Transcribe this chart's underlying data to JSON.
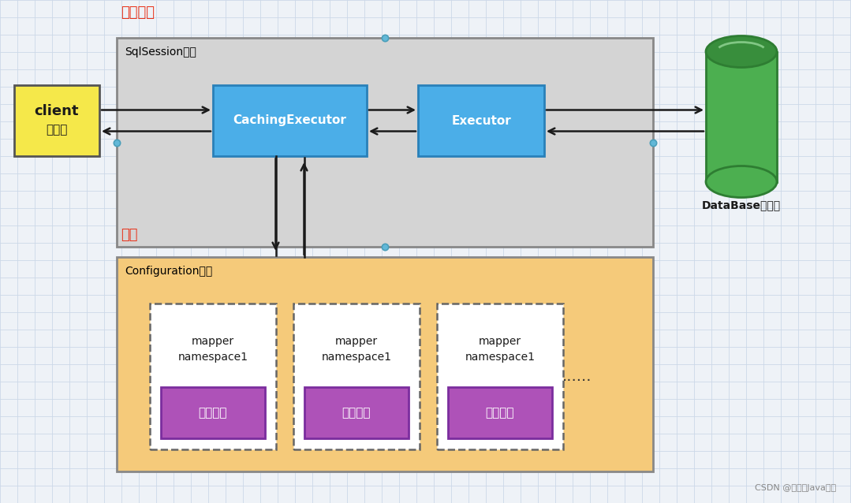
{
  "bg_color": "#eef2f7",
  "grid_color": "#ccd8e8",
  "title_once": "一次会话",
  "title_quanju": "全局",
  "title_color": "#e8341c",
  "sqlsession_label": "SqlSession对象",
  "config_label": "Configuration对象",
  "caching_label": "CachingExecutor",
  "executor_label": "Executor",
  "database_label": "DataBase数据库",
  "mapper_label_1": "mapper",
  "mapper_label_2": "namespace1",
  "cache_label": "二级缓存",
  "client_line1": "client",
  "client_line2": "客户端",
  "dots_label": "......",
  "footer": "CSDN @苏渠的Java之旅",
  "sqlsession_bg": "#d4d4d4",
  "config_bg": "#f5ca7a",
  "client_bg": "#f5e84a",
  "caching_bg": "#4baee8",
  "executor_bg": "#4baee8",
  "mapper_bg": "#ffffff",
  "cache_bg": "#ae52b8",
  "cache_color": "#ffffff",
  "db_green": "#4caf50",
  "db_dark": "#2e7d32",
  "db_top": "#388e3c"
}
